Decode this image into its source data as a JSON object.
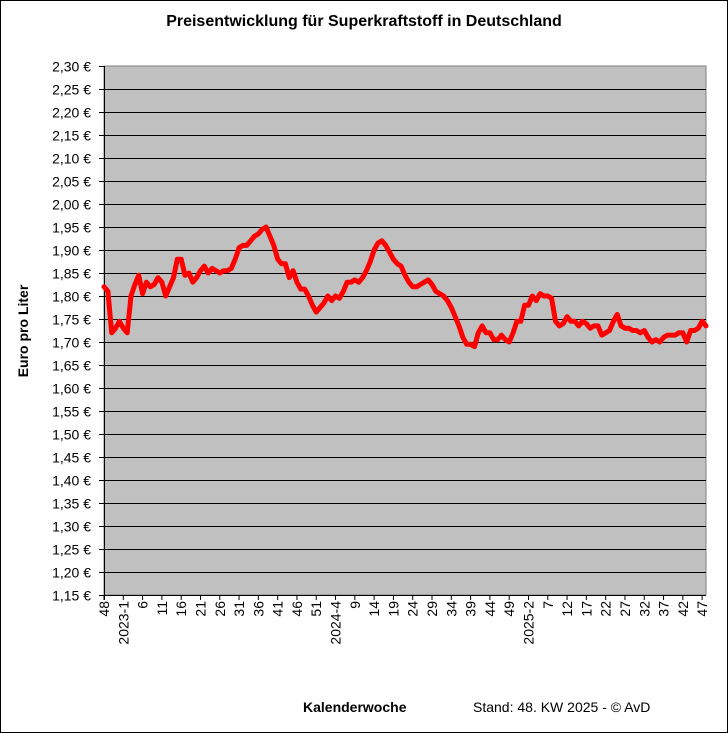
{
  "chart_data": {
    "type": "line",
    "title": "Preisentwicklung für Superkraftstoff in Deutschland",
    "xlabel": "Kalenderwoche",
    "ylabel": "Euro pro Liter",
    "footnote": "Stand: 48. KW 2025 - © AvD",
    "ylim": [
      1.15,
      2.3
    ],
    "ystep": 0.05,
    "y_tick_suffix": " €",
    "grid": true,
    "background": "#c0c0c0",
    "line_color": "#ff0000",
    "x_range": "KW 48/2022 – KW 48/2025 (weekly)",
    "x_tick_labels": [
      "48",
      "2023-1",
      "6",
      "11",
      "16",
      "21",
      "26",
      "31",
      "36",
      "41",
      "46",
      "51",
      "2024-4",
      "9",
      "14",
      "19",
      "24",
      "29",
      "34",
      "39",
      "44",
      "49",
      "2025-2",
      "7",
      "12",
      "17",
      "22",
      "27",
      "32",
      "37",
      "42",
      "47"
    ],
    "series": [
      {
        "values": [
          1.82,
          1.81,
          1.72,
          1.73,
          1.745,
          1.73,
          1.72,
          1.8,
          1.825,
          1.845,
          1.805,
          1.83,
          1.82,
          1.825,
          1.84,
          1.83,
          1.8,
          1.82,
          1.84,
          1.88,
          1.88,
          1.845,
          1.85,
          1.83,
          1.84,
          1.855,
          1.865,
          1.85,
          1.86,
          1.855,
          1.85,
          1.855,
          1.855,
          1.86,
          1.88,
          1.905,
          1.91,
          1.91,
          1.92,
          1.93,
          1.935,
          1.945,
          1.95,
          1.93,
          1.91,
          1.88,
          1.87,
          1.87,
          1.84,
          1.855,
          1.83,
          1.815,
          1.815,
          1.8,
          1.78,
          1.765,
          1.775,
          1.785,
          1.8,
          1.79,
          1.8,
          1.795,
          1.81,
          1.83,
          1.83,
          1.835,
          1.83,
          1.84,
          1.855,
          1.875,
          1.9,
          1.915,
          1.92,
          1.91,
          1.895,
          1.88,
          1.87,
          1.865,
          1.845,
          1.83,
          1.82,
          1.82,
          1.825,
          1.83,
          1.835,
          1.825,
          1.81,
          1.805,
          1.8,
          1.79,
          1.775,
          1.755,
          1.735,
          1.71,
          1.695,
          1.695,
          1.69,
          1.72,
          1.735,
          1.72,
          1.72,
          1.705,
          1.705,
          1.715,
          1.705,
          1.7,
          1.72,
          1.745,
          1.745,
          1.78,
          1.78,
          1.8,
          1.79,
          1.805,
          1.8,
          1.8,
          1.795,
          1.745,
          1.735,
          1.74,
          1.755,
          1.745,
          1.745,
          1.735,
          1.745,
          1.74,
          1.73,
          1.735,
          1.735,
          1.715,
          1.72,
          1.725,
          1.745,
          1.76,
          1.735,
          1.73,
          1.73,
          1.725,
          1.725,
          1.72,
          1.725,
          1.71,
          1.7,
          1.705,
          1.7,
          1.71,
          1.715,
          1.715,
          1.715,
          1.72,
          1.72,
          1.7,
          1.725,
          1.725,
          1.73,
          1.745,
          1.735
        ]
      }
    ]
  }
}
